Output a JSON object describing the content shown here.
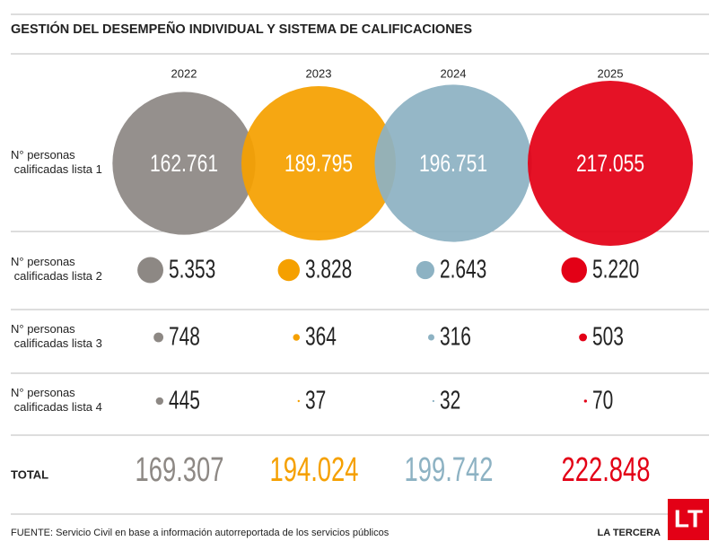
{
  "chart_data": {
    "type": "bubble-table",
    "title": "GESTIÓN DEL DESEMPEÑO INDIVIDUAL Y SISTEMA DE CALIFICACIONES",
    "categories": [
      "2022",
      "2023",
      "2024",
      "2025"
    ],
    "colors": [
      "#8d8884",
      "#f5a000",
      "#8db2c3",
      "#e30016"
    ],
    "series": [
      {
        "name": "N° personas calificadas lista 1",
        "values": [
          162761,
          189795,
          196751,
          217055
        ],
        "value_labels": [
          "162.761",
          "189.795",
          "196.751",
          "217.055"
        ]
      },
      {
        "name": "N° personas calificadas lista 2",
        "values": [
          5353,
          3828,
          2643,
          5220
        ],
        "value_labels": [
          "5.353",
          "3.828",
          "2.643",
          "5.220"
        ]
      },
      {
        "name": "N° personas calificadas lista 3",
        "values": [
          748,
          364,
          316,
          503
        ]
      },
      {
        "name": "N° personas calificadas lista 4",
        "values": [
          445,
          37,
          32,
          70
        ]
      }
    ],
    "total": {
      "name": "TOTAL",
      "values": [
        169307,
        194024,
        199742,
        222848
      ],
      "value_labels": [
        "169.307",
        "194.024",
        "199.742",
        "222.848"
      ]
    },
    "source": "FUENTE: Servicio Civil en base a información autorreportada de los servicios públicos",
    "brand": "LA TERCERA",
    "logo": "LT"
  }
}
